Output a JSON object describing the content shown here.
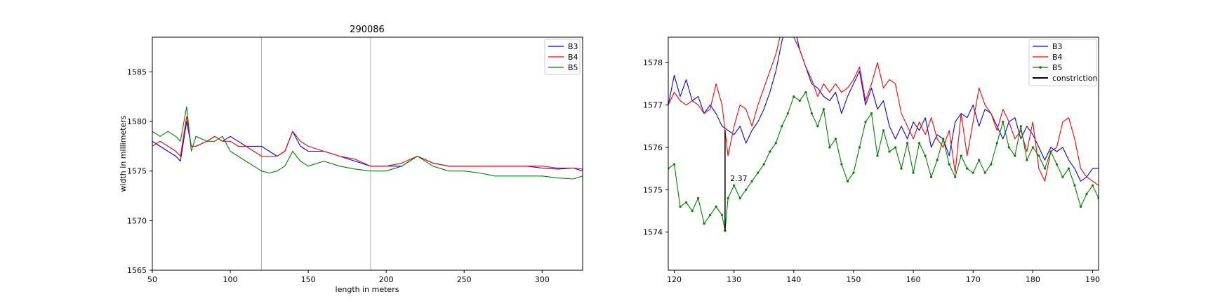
{
  "colors": {
    "B3": "#0000ff",
    "B4": "#ff0000",
    "B5": "#008000",
    "constriction": "#000000"
  },
  "chart_data": [
    {
      "type": "line",
      "title": "290086",
      "xlabel": "length in meters",
      "ylabel": "width in millimeters",
      "xlim": [
        50,
        326
      ],
      "ylim": [
        1565,
        1588.5
      ],
      "xticks": [
        50,
        100,
        150,
        200,
        250,
        300
      ],
      "yticks": [
        1565,
        1570,
        1575,
        1580,
        1585
      ],
      "vlines": [
        120,
        190
      ],
      "legend_position": "top-right",
      "grid": false,
      "series": [
        {
          "name": "B3",
          "x": [
            50,
            55,
            60,
            65,
            68,
            72,
            75,
            78,
            85,
            90,
            95,
            100,
            105,
            110,
            115,
            120,
            125,
            130,
            135,
            140,
            145,
            150,
            160,
            170,
            180,
            190,
            200,
            210,
            220,
            230,
            240,
            250,
            260,
            270,
            280,
            290,
            300,
            310,
            320,
            326
          ],
          "values": [
            1578,
            1577.5,
            1577,
            1576.5,
            1576,
            1580,
            1577.5,
            1577.5,
            1578,
            1578.5,
            1578,
            1578.5,
            1578,
            1577.5,
            1577.5,
            1577.5,
            1577,
            1576.5,
            1577,
            1579,
            1577.5,
            1577,
            1577,
            1576.5,
            1576,
            1575.5,
            1575.5,
            1575.5,
            1576.5,
            1575.8,
            1575.5,
            1575.5,
            1575.5,
            1575.5,
            1575.5,
            1575.5,
            1575.3,
            1575.2,
            1575.3,
            1575
          ]
        },
        {
          "name": "B4",
          "x": [
            50,
            55,
            60,
            65,
            68,
            72,
            75,
            78,
            85,
            90,
            95,
            100,
            105,
            110,
            115,
            120,
            125,
            130,
            135,
            140,
            145,
            150,
            160,
            170,
            180,
            190,
            200,
            210,
            220,
            230,
            240,
            250,
            260,
            270,
            280,
            290,
            300,
            310,
            320,
            326
          ],
          "values": [
            1577.5,
            1578,
            1577.5,
            1577,
            1576.5,
            1580.5,
            1577.5,
            1577.5,
            1578,
            1578.5,
            1578,
            1578,
            1577.5,
            1577.5,
            1577,
            1576.5,
            1576.5,
            1576.5,
            1577,
            1579,
            1578,
            1577.5,
            1577,
            1576.5,
            1576.2,
            1575.5,
            1575.5,
            1575.8,
            1576.5,
            1575.8,
            1575.5,
            1575.5,
            1575.5,
            1575.5,
            1575.5,
            1575.5,
            1575.5,
            1575.3,
            1575.3,
            1575.2
          ]
        },
        {
          "name": "B5",
          "x": [
            50,
            55,
            60,
            65,
            68,
            72,
            75,
            78,
            85,
            90,
            95,
            100,
            105,
            110,
            115,
            120,
            125,
            130,
            135,
            140,
            145,
            150,
            160,
            170,
            180,
            190,
            200,
            210,
            220,
            230,
            240,
            250,
            260,
            270,
            280,
            290,
            300,
            310,
            320,
            326
          ],
          "values": [
            1579,
            1578.5,
            1579,
            1578.5,
            1578,
            1581.5,
            1577,
            1578.5,
            1578,
            1578,
            1578.5,
            1577,
            1576.5,
            1576,
            1575.5,
            1575,
            1574.8,
            1575,
            1575.5,
            1577,
            1576,
            1575.5,
            1576,
            1575.5,
            1575.2,
            1575,
            1575,
            1575.5,
            1576.5,
            1575.5,
            1575,
            1575,
            1574.8,
            1574.5,
            1574.5,
            1574.5,
            1574.5,
            1574.3,
            1574.2,
            1574.5
          ]
        }
      ]
    },
    {
      "type": "line",
      "title": "",
      "xlabel": "",
      "ylabel": "",
      "xlim": [
        119,
        191
      ],
      "ylim": [
        1573.1,
        1578.6
      ],
      "xticks": [
        120,
        130,
        140,
        150,
        160,
        170,
        180,
        190
      ],
      "yticks": [
        1574,
        1575,
        1576,
        1577,
        1578
      ],
      "legend_position": "top-right",
      "grid": false,
      "annotation": {
        "text": "2.37",
        "x": 129,
        "y": 1575.2
      },
      "constriction": {
        "x": 128.5,
        "y_top": 1576.4,
        "y_bottom": 1574.03
      },
      "series": [
        {
          "name": "B3",
          "x": [
            119,
            120,
            121,
            122,
            123,
            124,
            125,
            126,
            127,
            128,
            129,
            130,
            131,
            132,
            133,
            134,
            135,
            136,
            137,
            138,
            139,
            140,
            141,
            142,
            143,
            144,
            145,
            146,
            147,
            148,
            149,
            150,
            151,
            152,
            153,
            154,
            155,
            156,
            157,
            158,
            159,
            160,
            161,
            162,
            163,
            164,
            165,
            166,
            167,
            168,
            169,
            170,
            171,
            172,
            173,
            174,
            175,
            176,
            177,
            178,
            179,
            180,
            181,
            182,
            183,
            184,
            185,
            186,
            187,
            188,
            189,
            190,
            191
          ],
          "values": [
            1577,
            1577.7,
            1577.2,
            1577.6,
            1577.1,
            1577.2,
            1576.8,
            1577,
            1576.8,
            1576.5,
            1576.4,
            1576.3,
            1576.5,
            1576.1,
            1576.4,
            1576.6,
            1576.9,
            1577.3,
            1577.8,
            1578.5,
            1579,
            1578.9,
            1578.3,
            1577.9,
            1577.5,
            1577.4,
            1577.2,
            1577.1,
            1577.3,
            1576.8,
            1577.2,
            1577.5,
            1577.8,
            1577,
            1577.4,
            1576.9,
            1577.1,
            1576.5,
            1576.2,
            1576.5,
            1576.2,
            1576.6,
            1576.4,
            1576.7,
            1576,
            1576.3,
            1576.2,
            1575.8,
            1576.6,
            1576.8,
            1576.7,
            1577,
            1576.5,
            1576.9,
            1576.8,
            1576.5,
            1576.2,
            1576.6,
            1576.7,
            1576.2,
            1576.5,
            1576.3,
            1576,
            1575.7,
            1576,
            1575.9,
            1576,
            1575.7,
            1575.5,
            1575.2,
            1575.3,
            1575.5,
            1575.5
          ]
        },
        {
          "name": "B4",
          "x": [
            119,
            120,
            121,
            122,
            123,
            124,
            125,
            126,
            127,
            128,
            129,
            130,
            131,
            132,
            133,
            134,
            135,
            136,
            137,
            138,
            139,
            140,
            141,
            142,
            143,
            144,
            145,
            146,
            147,
            148,
            149,
            150,
            151,
            152,
            153,
            154,
            155,
            156,
            157,
            158,
            159,
            160,
            161,
            162,
            163,
            164,
            165,
            166,
            167,
            168,
            169,
            170,
            171,
            172,
            173,
            174,
            175,
            176,
            177,
            178,
            179,
            180,
            181,
            182,
            183,
            184,
            185,
            186,
            187,
            188,
            189,
            190,
            191
          ],
          "values": [
            1577,
            1577.3,
            1577.1,
            1577,
            1577.1,
            1577,
            1576.8,
            1576.9,
            1577.5,
            1577,
            1575.8,
            1576.5,
            1577,
            1576.9,
            1576.5,
            1577,
            1577.4,
            1577.8,
            1578.2,
            1578.8,
            1579.2,
            1578.6,
            1578.3,
            1577.9,
            1577.6,
            1577.2,
            1577.5,
            1577.3,
            1577.5,
            1577.3,
            1577.4,
            1577.6,
            1577.9,
            1577.1,
            1577.5,
            1578,
            1577.4,
            1577.6,
            1577.5,
            1576.8,
            1576.5,
            1576.2,
            1576.6,
            1576.3,
            1576.7,
            1576.2,
            1576,
            1576.4,
            1575.4,
            1576.8,
            1575.8,
            1576.6,
            1577.4,
            1577,
            1576.8,
            1576.4,
            1576.9,
            1576.6,
            1576.2,
            1576.4,
            1575.9,
            1576.6,
            1575.5,
            1575.2,
            1575.9,
            1576,
            1576.6,
            1576.7,
            1576.2,
            1575.5,
            1575.3,
            1575.2,
            1575.1
          ]
        },
        {
          "name": "B5",
          "x": [
            119,
            120,
            121,
            122,
            123,
            124,
            125,
            126,
            127,
            128,
            128.5,
            129,
            130,
            131,
            132,
            133,
            134,
            135,
            136,
            137,
            138,
            139,
            140,
            141,
            142,
            143,
            144,
            145,
            146,
            147,
            148,
            149,
            150,
            151,
            152,
            153,
            154,
            155,
            156,
            157,
            158,
            159,
            160,
            161,
            162,
            163,
            164,
            165,
            166,
            167,
            168,
            169,
            170,
            171,
            172,
            173,
            174,
            175,
            176,
            177,
            178,
            179,
            180,
            181,
            182,
            183,
            184,
            185,
            186,
            187,
            188,
            189,
            190,
            191
          ],
          "values": [
            1575.5,
            1575.6,
            1574.6,
            1574.7,
            1574.5,
            1574.8,
            1574.2,
            1574.4,
            1574.6,
            1574.4,
            1574.03,
            1574.8,
            1575.1,
            1574.8,
            1575,
            1575.2,
            1575.4,
            1575.6,
            1575.9,
            1576.1,
            1576.5,
            1576.8,
            1577.2,
            1577.1,
            1577.3,
            1576.8,
            1576.5,
            1576.9,
            1576,
            1576.2,
            1575.6,
            1575.2,
            1575.4,
            1576,
            1576.6,
            1576.8,
            1575.8,
            1576.4,
            1575.9,
            1576,
            1575.5,
            1576.1,
            1575.4,
            1576.1,
            1575.8,
            1575.3,
            1575.7,
            1576.2,
            1575.6,
            1575.3,
            1575.8,
            1575.5,
            1575.4,
            1575.7,
            1575.4,
            1575.6,
            1576.1,
            1576.6,
            1576,
            1575.8,
            1576.5,
            1575.7,
            1576,
            1575.8,
            1575.5,
            1575.9,
            1575.6,
            1575.3,
            1575.5,
            1575.1,
            1574.6,
            1574.9,
            1575.1,
            1574.8
          ]
        }
      ]
    }
  ],
  "legend": {
    "left": [
      "B3",
      "B4",
      "B5"
    ],
    "right": [
      "B3",
      "B4",
      "B5",
      "constriction"
    ]
  }
}
